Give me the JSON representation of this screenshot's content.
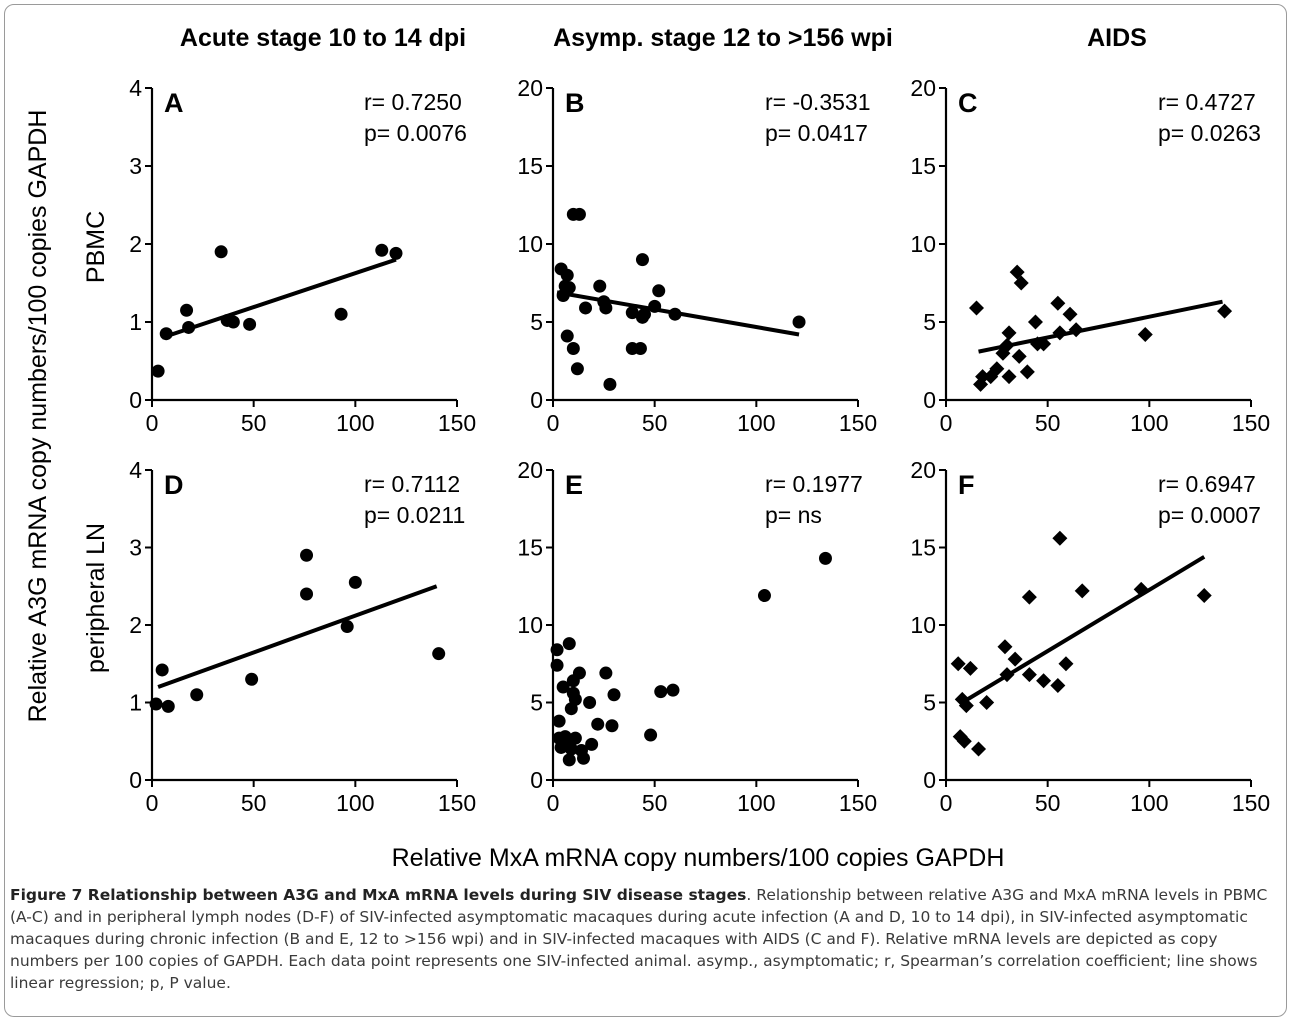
{
  "column_headers": [
    "Acute stage 10 to 14 dpi",
    "Asymp. stage 12 to >156 wpi",
    "AIDS"
  ],
  "row_labels": [
    "PBMC",
    "peripheral  LN"
  ],
  "y_axis_label": "Relative A3G mRNA copy numbers/100 copies GAPDH",
  "x_axis_label": "Relative MxA mRNA copy numbers/100 copies GAPDH",
  "caption": {
    "title": "Figure 7 Relationship between A3G and MxA mRNA levels during SIV disease stages",
    "body": ". Relationship between relative A3G and MxA mRNA levels in PBMC (A-C) and in peripheral lymph nodes (D-F) of SIV-infected asymptomatic macaques during acute infection (A and D, 10 to 14 dpi), in SIV-infected asymptomatic macaques during chronic infection (B and E, 12 to >156 wpi) and in SIV-infected macaques with AIDS (C and F). Relative mRNA levels are depicted as copy numbers per 100 copies of GAPDH. Each data point represents one SIV-infected animal. asymp., asymptomatic; r, Spearman’s correlation coefficient; line shows linear regression; p, P value."
  },
  "colors": {
    "marker": "#000000",
    "axis": "#000000",
    "frame": "#9a9a9a",
    "caption_text": "#3a3a3a"
  },
  "chart_data": [
    {
      "type": "scatter",
      "panel": "A",
      "marker": "circle",
      "stats": [
        "r= 0.7250",
        "p= 0.0076"
      ],
      "xlim": [
        0,
        150
      ],
      "ylim": [
        0,
        4
      ],
      "xticks": [
        "0",
        "50",
        "100",
        "150"
      ],
      "yticks": [
        "0",
        "1",
        "2",
        "3",
        "4"
      ],
      "points": [
        [
          3,
          0.37
        ],
        [
          7,
          0.85
        ],
        [
          17,
          1.15
        ],
        [
          18,
          0.93
        ],
        [
          34,
          1.9
        ],
        [
          37,
          1.02
        ],
        [
          40,
          1.0
        ],
        [
          48,
          0.97
        ],
        [
          93,
          1.1
        ],
        [
          113,
          1.92
        ],
        [
          120,
          1.88
        ]
      ],
      "regression": [
        [
          5,
          0.8
        ],
        [
          120,
          1.8
        ]
      ]
    },
    {
      "type": "scatter",
      "panel": "B",
      "marker": "circle",
      "stats": [
        "r= -0.3531",
        "p= 0.0417"
      ],
      "xlim": [
        0,
        150
      ],
      "ylim": [
        0,
        20
      ],
      "xticks": [
        "0",
        "50",
        "100",
        "150"
      ],
      "yticks": [
        "0",
        "5",
        "10",
        "15",
        "20"
      ],
      "points": [
        [
          4,
          8.4
        ],
        [
          5,
          6.7
        ],
        [
          6,
          7.3
        ],
        [
          7,
          8.0
        ],
        [
          7,
          4.1
        ],
        [
          8,
          7.2
        ],
        [
          10,
          11.9
        ],
        [
          10,
          3.3
        ],
        [
          12,
          2.0
        ],
        [
          13,
          11.9
        ],
        [
          16,
          5.9
        ],
        [
          23,
          7.3
        ],
        [
          25,
          6.3
        ],
        [
          26,
          5.9
        ],
        [
          28,
          1.0
        ],
        [
          39,
          5.6
        ],
        [
          39,
          3.3
        ],
        [
          43,
          3.3
        ],
        [
          44,
          9.0
        ],
        [
          44,
          5.3
        ],
        [
          45,
          5.5
        ],
        [
          50,
          6.0
        ],
        [
          52,
          7.0
        ],
        [
          60,
          5.5
        ],
        [
          121,
          5.0
        ]
      ],
      "regression": [
        [
          2,
          6.9
        ],
        [
          121,
          4.2
        ]
      ]
    },
    {
      "type": "scatter",
      "panel": "C",
      "marker": "diamond",
      "stats": [
        "r= 0.4727",
        "p= 0.0263"
      ],
      "xlim": [
        0,
        150
      ],
      "ylim": [
        0,
        20
      ],
      "xticks": [
        "0",
        "50",
        "100",
        "150"
      ],
      "yticks": [
        "0",
        "5",
        "10",
        "15",
        "20"
      ],
      "points": [
        [
          15,
          5.9
        ],
        [
          17,
          1.0
        ],
        [
          18,
          1.5
        ],
        [
          22,
          1.5
        ],
        [
          25,
          2.0
        ],
        [
          28,
          3.0
        ],
        [
          30,
          3.5
        ],
        [
          31,
          1.5
        ],
        [
          31,
          4.3
        ],
        [
          35,
          8.2
        ],
        [
          36,
          2.8
        ],
        [
          37,
          7.5
        ],
        [
          40,
          1.8
        ],
        [
          44,
          5.0
        ],
        [
          45,
          3.6
        ],
        [
          48,
          3.6
        ],
        [
          55,
          6.2
        ],
        [
          56,
          4.3
        ],
        [
          61,
          5.5
        ],
        [
          64,
          4.5
        ],
        [
          98,
          4.2
        ],
        [
          137,
          5.7
        ]
      ],
      "regression": [
        [
          16,
          3.1
        ],
        [
          136,
          6.3
        ]
      ]
    },
    {
      "type": "scatter",
      "panel": "D",
      "marker": "circle",
      "stats": [
        "r= 0.7112",
        "p= 0.0211"
      ],
      "xlim": [
        0,
        150
      ],
      "ylim": [
        0,
        4
      ],
      "xticks": [
        "0",
        "50",
        "100",
        "150"
      ],
      "yticks": [
        "0",
        "1",
        "2",
        "3",
        "4"
      ],
      "points": [
        [
          2,
          0.98
        ],
        [
          5,
          1.42
        ],
        [
          8,
          0.95
        ],
        [
          22,
          1.1
        ],
        [
          49,
          1.3
        ],
        [
          76,
          2.4
        ],
        [
          76,
          2.9
        ],
        [
          96,
          1.98
        ],
        [
          100,
          2.55
        ],
        [
          141,
          1.63
        ]
      ],
      "regression": [
        [
          3,
          1.2
        ],
        [
          140,
          2.5
        ]
      ]
    },
    {
      "type": "scatter",
      "panel": "E",
      "marker": "circle",
      "stats": [
        "r= 0.1977",
        "p= ns"
      ],
      "xlim": [
        0,
        150
      ],
      "ylim": [
        0,
        20
      ],
      "xticks": [
        "0",
        "50",
        "100",
        "150"
      ],
      "yticks": [
        "0",
        "5",
        "10",
        "15",
        "20"
      ],
      "points": [
        [
          2,
          8.4
        ],
        [
          2,
          7.4
        ],
        [
          3,
          3.8
        ],
        [
          3,
          2.7
        ],
        [
          4,
          2.1
        ],
        [
          5,
          6.0
        ],
        [
          6,
          2.8
        ],
        [
          6,
          2.3
        ],
        [
          8,
          8.8
        ],
        [
          8,
          1.3
        ],
        [
          9,
          2.0
        ],
        [
          9,
          4.6
        ],
        [
          10,
          6.4
        ],
        [
          10,
          5.6
        ],
        [
          11,
          5.2
        ],
        [
          11,
          2.7
        ],
        [
          13,
          6.9
        ],
        [
          14,
          1.9
        ],
        [
          15,
          1.4
        ],
        [
          18,
          5.0
        ],
        [
          19,
          2.3
        ],
        [
          22,
          3.6
        ],
        [
          26,
          6.9
        ],
        [
          29,
          3.5
        ],
        [
          30,
          5.5
        ],
        [
          48,
          2.9
        ],
        [
          53,
          5.7
        ],
        [
          59,
          5.8
        ],
        [
          104,
          11.9
        ],
        [
          134,
          14.3
        ]
      ]
    },
    {
      "type": "scatter",
      "panel": "F",
      "marker": "diamond",
      "stats": [
        "r= 0.6947",
        "p= 0.0007"
      ],
      "xlim": [
        0,
        150
      ],
      "ylim": [
        0,
        20
      ],
      "xticks": [
        "0",
        "50",
        "100",
        "150"
      ],
      "yticks": [
        "0",
        "5",
        "10",
        "15",
        "20"
      ],
      "points": [
        [
          6,
          7.5
        ],
        [
          7,
          2.8
        ],
        [
          8,
          5.2
        ],
        [
          9,
          2.5
        ],
        [
          10,
          4.8
        ],
        [
          12,
          7.2
        ],
        [
          16,
          2.0
        ],
        [
          20,
          5.0
        ],
        [
          29,
          8.6
        ],
        [
          30,
          6.8
        ],
        [
          34,
          7.8
        ],
        [
          41,
          11.8
        ],
        [
          41,
          6.8
        ],
        [
          48,
          6.4
        ],
        [
          55,
          6.1
        ],
        [
          56,
          15.6
        ],
        [
          59,
          7.5
        ],
        [
          67,
          12.2
        ],
        [
          96,
          12.3
        ],
        [
          127,
          11.9
        ]
      ],
      "regression": [
        [
          8,
          5.0
        ],
        [
          127,
          14.4
        ]
      ]
    }
  ]
}
